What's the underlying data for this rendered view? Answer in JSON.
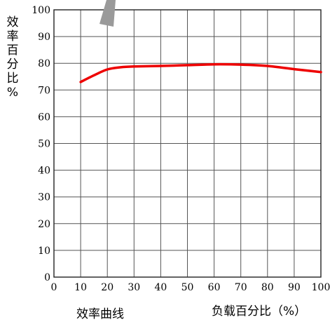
{
  "chart_data": {
    "type": "line",
    "caption": "效率曲线",
    "xlabel": "负载百分比（%）",
    "ylabel_chars": [
      "效",
      "率",
      "百",
      "分",
      "比",
      "%"
    ],
    "xlim": [
      0,
      100
    ],
    "ylim": [
      0,
      100
    ],
    "x_ticks": [
      0,
      10,
      20,
      30,
      40,
      50,
      60,
      70,
      80,
      90,
      100
    ],
    "y_ticks": [
      0,
      10,
      20,
      30,
      40,
      50,
      60,
      70,
      80,
      90,
      100
    ],
    "grid": true,
    "series": [
      {
        "color": "#ee0000",
        "x": [
          10,
          15,
          20,
          25,
          30,
          40,
          50,
          60,
          70,
          80,
          90,
          100
        ],
        "y": [
          73,
          75.5,
          77.7,
          78.5,
          78.8,
          79,
          79.3,
          79.6,
          79.5,
          79,
          77.8,
          76.7
        ]
      }
    ]
  }
}
